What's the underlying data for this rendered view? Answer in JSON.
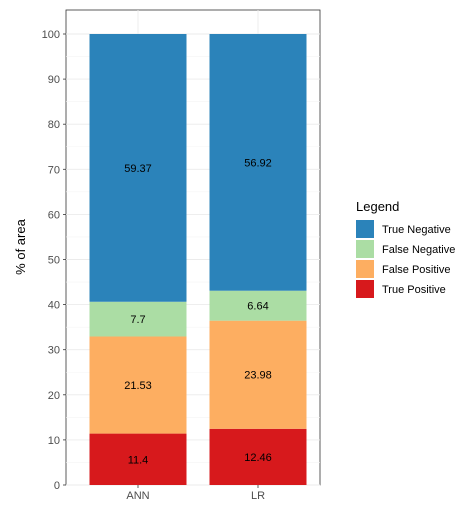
{
  "chart_data": {
    "type": "bar",
    "stacked": true,
    "title": "",
    "xlabel": "",
    "ylabel": "% of area",
    "ylim": [
      0,
      100
    ],
    "yticks": [
      "0",
      "10",
      "20",
      "30",
      "40",
      "50",
      "60",
      "70",
      "80",
      "90",
      "100"
    ],
    "grid": true,
    "legend_position": "right",
    "legend_title": "Legend",
    "legend_order": [
      "True Negative",
      "False Negative",
      "False Positive",
      "True Positive"
    ],
    "categories": [
      "ANN",
      "LR"
    ],
    "series": [
      {
        "name": "True Positive",
        "color": "#d7191c",
        "values": [
          11.4,
          12.46
        ],
        "labels": [
          "11.4",
          "12.46"
        ]
      },
      {
        "name": "False Positive",
        "color": "#fdae61",
        "values": [
          21.53,
          23.98
        ],
        "labels": [
          "21.53",
          "23.98"
        ]
      },
      {
        "name": "False Negative",
        "color": "#abdda4",
        "values": [
          7.7,
          6.64
        ],
        "labels": [
          "7.7",
          "6.64"
        ]
      },
      {
        "name": "True Negative",
        "color": "#2b83ba",
        "values": [
          59.37,
          56.92
        ],
        "labels": [
          "59.37",
          "56.92"
        ]
      }
    ]
  }
}
